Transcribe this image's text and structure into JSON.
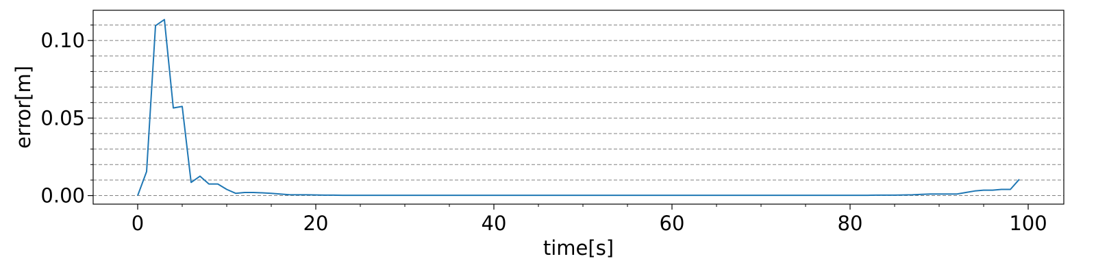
{
  "chart_data": {
    "type": "line",
    "title": "",
    "xlabel": "time[s]",
    "ylabel": "error[m]",
    "xlim": [
      -5,
      104
    ],
    "ylim": [
      -0.0055,
      0.1195
    ],
    "xticks": [
      0,
      20,
      40,
      60,
      80,
      100
    ],
    "xtick_labels": [
      "0",
      "20",
      "40",
      "60",
      "80",
      "100"
    ],
    "yticks": [
      0.0,
      0.05,
      0.1
    ],
    "ytick_labels": [
      "0.00",
      "0.05",
      "0.10"
    ],
    "grid": "horizontal dashed at every 0.01",
    "color": "#1f77b4",
    "series": [
      {
        "x": [
          0,
          1,
          2,
          3,
          4,
          5,
          6,
          7,
          8,
          9,
          10,
          11,
          12,
          13,
          14,
          15,
          16,
          17,
          18,
          19,
          20,
          21,
          22,
          23,
          24,
          25,
          26,
          27,
          28,
          29,
          30,
          31,
          32,
          33,
          34,
          35,
          36,
          37,
          38,
          39,
          40,
          41,
          42,
          43,
          44,
          45,
          46,
          47,
          48,
          49,
          50,
          51,
          52,
          53,
          54,
          55,
          56,
          57,
          58,
          59,
          60,
          61,
          62,
          63,
          64,
          65,
          66,
          67,
          68,
          69,
          70,
          71,
          72,
          73,
          74,
          75,
          76,
          77,
          78,
          79,
          80,
          81,
          82,
          83,
          84,
          85,
          86,
          87,
          88,
          89,
          90,
          91,
          92,
          93,
          94,
          95,
          96,
          97,
          98,
          99
        ],
        "y": [
          0.0,
          0.0155,
          0.1095,
          0.1135,
          0.0565,
          0.0575,
          0.0085,
          0.0125,
          0.0075,
          0.0075,
          0.004,
          0.0015,
          0.002,
          0.002,
          0.0018,
          0.0015,
          0.001,
          0.0006,
          0.0005,
          0.0005,
          0.0004,
          0.0003,
          0.0003,
          0.0002,
          0.0002,
          0.0002,
          0.0002,
          0.0002,
          0.0002,
          0.0002,
          0.0002,
          0.0002,
          0.0002,
          0.0002,
          0.0002,
          0.0002,
          0.0002,
          0.0002,
          0.0002,
          0.0002,
          0.0002,
          0.0002,
          0.0002,
          0.0002,
          0.0002,
          0.0002,
          0.0002,
          0.0002,
          0.0002,
          0.0002,
          0.0002,
          0.0002,
          0.0002,
          0.0002,
          0.0002,
          0.0002,
          0.0002,
          0.0002,
          0.0002,
          0.0002,
          0.0002,
          0.0002,
          0.0002,
          0.0002,
          0.0002,
          0.0002,
          0.0002,
          0.0002,
          0.0002,
          0.0002,
          0.0002,
          0.0002,
          0.0002,
          0.0002,
          0.0002,
          0.0002,
          0.0002,
          0.0002,
          0.0002,
          0.0002,
          0.0002,
          0.0002,
          0.0002,
          0.0003,
          0.0003,
          0.0003,
          0.0004,
          0.0005,
          0.0008,
          0.001,
          0.001,
          0.001,
          0.001,
          0.002,
          0.003,
          0.0035,
          0.0035,
          0.004,
          0.004,
          0.0105
        ]
      }
    ]
  }
}
